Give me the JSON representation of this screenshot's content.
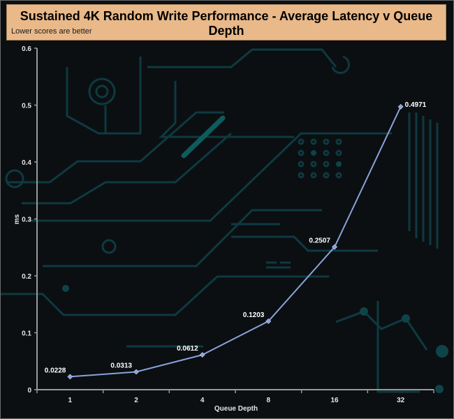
{
  "header": {
    "title": "Sustained 4K Random Write Performance - Average Latency v Queue Depth",
    "subtitle": "Lower scores are better"
  },
  "colors": {
    "header_bg": "#e9b98a",
    "line": "#8aa2d8",
    "background": "#0b0f12"
  },
  "chart_data": {
    "type": "line",
    "title": "Sustained 4K Random Write Performance - Average Latency v Queue Depth",
    "subtitle": "Lower scores are better",
    "xlabel": "Queue Depth",
    "ylabel": "ms",
    "categories": [
      "1",
      "2",
      "4",
      "8",
      "16",
      "32"
    ],
    "series": [
      {
        "values": [
          0.0228,
          0.0313,
          0.0612,
          0.1203,
          0.2507,
          0.4971
        ]
      }
    ],
    "data_labels": [
      "0.0228",
      "0.0313",
      "0.0612",
      "0.1203",
      "0.2507",
      "0.4971"
    ],
    "ylim": [
      0,
      0.6
    ],
    "yticks": [
      "0",
      "0.1",
      "0.2",
      "0.3",
      "0.4",
      "0.5",
      "0.6"
    ],
    "grid": false,
    "legend": "none"
  }
}
